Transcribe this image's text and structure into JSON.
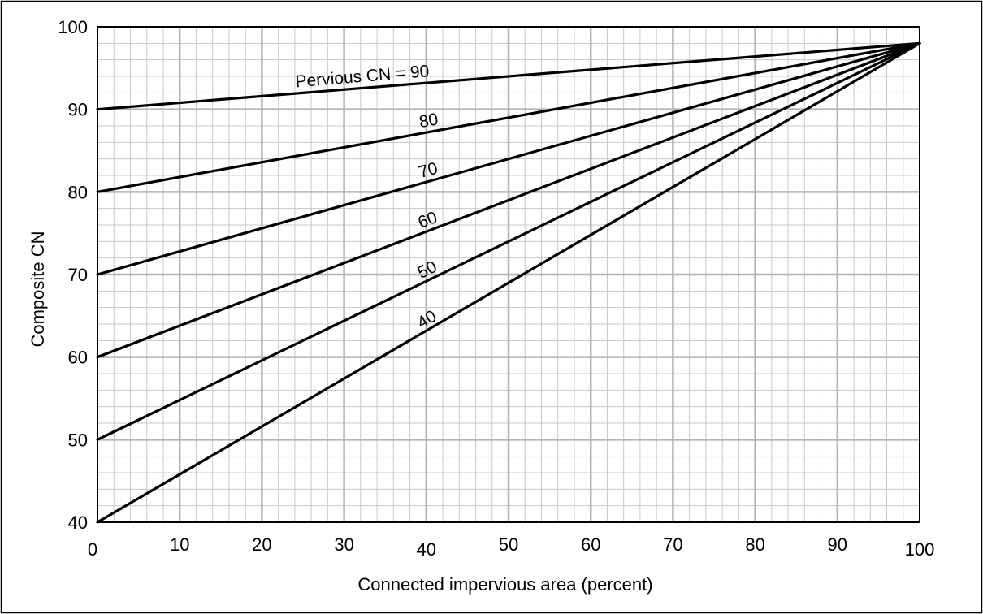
{
  "chart_data": {
    "type": "line",
    "title": "",
    "xlabel": "Connected impervious area (percent)",
    "ylabel": "Composite CN",
    "xlim": [
      0,
      100
    ],
    "ylim": [
      40,
      100
    ],
    "x_ticks": [
      0,
      10,
      20,
      30,
      40,
      50,
      60,
      70,
      80,
      90,
      100
    ],
    "y_ticks": [
      40,
      50,
      60,
      70,
      80,
      90,
      100
    ],
    "grid": true,
    "minor_grid_step": 2,
    "series_label_prefix": "Pervious CN = ",
    "series": [
      {
        "name": "90",
        "x": [
          0,
          100
        ],
        "y": [
          90,
          98
        ]
      },
      {
        "name": "80",
        "x": [
          0,
          100
        ],
        "y": [
          80,
          98
        ]
      },
      {
        "name": "70",
        "x": [
          0,
          100
        ],
        "y": [
          70,
          98
        ]
      },
      {
        "name": "60",
        "x": [
          0,
          100
        ],
        "y": [
          60,
          98
        ]
      },
      {
        "name": "50",
        "x": [
          0,
          100
        ],
        "y": [
          50,
          98
        ]
      },
      {
        "name": "40",
        "x": [
          0,
          100
        ],
        "y": [
          40,
          98
        ]
      }
    ]
  }
}
